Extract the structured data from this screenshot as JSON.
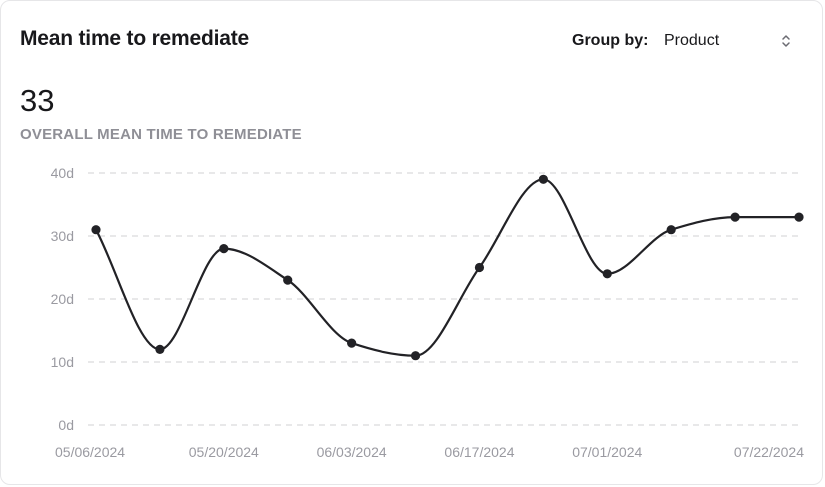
{
  "card": {
    "title": "Mean time to remediate",
    "group_by_label": "Group by:",
    "group_by_value": "Product"
  },
  "metric": {
    "value": "33",
    "label": "OVERALL MEAN TIME TO REMEDIATE"
  },
  "icons": {
    "select": "chevron-up-down-icon"
  },
  "colors": {
    "line": "#222226",
    "grid": "#d9d9dc",
    "tick_text": "#9a9aa1",
    "metric_label": "#8f8f96"
  },
  "chart_data": {
    "type": "line",
    "title": "",
    "xlabel": "",
    "ylabel": "",
    "x_tick_labels": [
      "05/06/2024",
      "05/20/2024",
      "06/03/2024",
      "06/17/2024",
      "07/01/2024",
      "07/22/2024"
    ],
    "y_tick_labels": [
      "0d",
      "10d",
      "20d",
      "30d",
      "40d"
    ],
    "ylim": [
      0,
      40
    ],
    "grid": true,
    "legend": "none",
    "series": [
      {
        "x": [
          "05/06/2024",
          "05/13/2024",
          "05/20/2024",
          "05/27/2024",
          "06/03/2024",
          "06/10/2024",
          "06/17/2024",
          "06/24/2024",
          "07/01/2024",
          "07/08/2024",
          "07/15/2024",
          "07/22/2024"
        ],
        "values": [
          31,
          12,
          28,
          23,
          13,
          11,
          25,
          39,
          24,
          31,
          33,
          33
        ]
      }
    ]
  }
}
